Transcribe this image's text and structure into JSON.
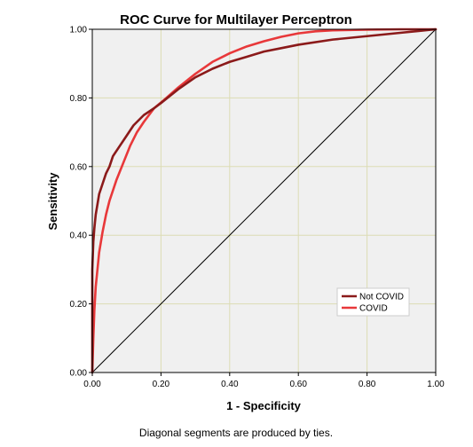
{
  "chart_data": {
    "type": "line",
    "title": "ROC Curve for Multilayer Perceptron",
    "xlabel": "1 - Specificity",
    "ylabel": "Sensitivity",
    "footnote": "Diagonal segments are produced by ties.",
    "xlim": [
      0,
      1
    ],
    "ylim": [
      0,
      1
    ],
    "x_ticks": [
      "0.00",
      "0.20",
      "0.40",
      "0.60",
      "0.80",
      "1.00"
    ],
    "y_ticks": [
      "0.00",
      "0.20",
      "0.40",
      "0.60",
      "0.80",
      "1.00"
    ],
    "grid": true,
    "legend_position": "bottom-right",
    "background_color": "#f0f0f0",
    "grid_color": "#dcdcb4",
    "series": [
      {
        "name": "Not COVID",
        "color": "#8b1a1a",
        "x": [
          0.0,
          0.0,
          0.003,
          0.006,
          0.01,
          0.015,
          0.02,
          0.03,
          0.04,
          0.05,
          0.06,
          0.08,
          0.1,
          0.12,
          0.15,
          0.18,
          0.2,
          0.25,
          0.3,
          0.35,
          0.4,
          0.45,
          0.5,
          0.55,
          0.6,
          0.7,
          0.8,
          0.9,
          0.95,
          1.0
        ],
        "y": [
          0.0,
          0.3,
          0.38,
          0.42,
          0.46,
          0.49,
          0.52,
          0.55,
          0.58,
          0.6,
          0.63,
          0.66,
          0.69,
          0.72,
          0.75,
          0.77,
          0.785,
          0.825,
          0.86,
          0.885,
          0.905,
          0.92,
          0.935,
          0.945,
          0.955,
          0.97,
          0.98,
          0.99,
          0.995,
          1.0
        ]
      },
      {
        "name": "COVID",
        "color": "#e8383a",
        "x": [
          0.0,
          0.003,
          0.006,
          0.01,
          0.015,
          0.02,
          0.03,
          0.04,
          0.05,
          0.07,
          0.09,
          0.11,
          0.13,
          0.15,
          0.18,
          0.21,
          0.25,
          0.3,
          0.35,
          0.4,
          0.45,
          0.5,
          0.55,
          0.6,
          0.65,
          0.7,
          0.8,
          0.9,
          1.0
        ],
        "y": [
          0.0,
          0.1,
          0.18,
          0.25,
          0.3,
          0.35,
          0.41,
          0.46,
          0.5,
          0.56,
          0.61,
          0.66,
          0.7,
          0.73,
          0.77,
          0.795,
          0.83,
          0.87,
          0.905,
          0.93,
          0.95,
          0.965,
          0.978,
          0.988,
          0.994,
          0.997,
          0.999,
          1.0,
          1.0
        ]
      },
      {
        "name": "",
        "color": "#000000",
        "x": [
          0,
          1
        ],
        "y": [
          0,
          1
        ]
      }
    ]
  }
}
